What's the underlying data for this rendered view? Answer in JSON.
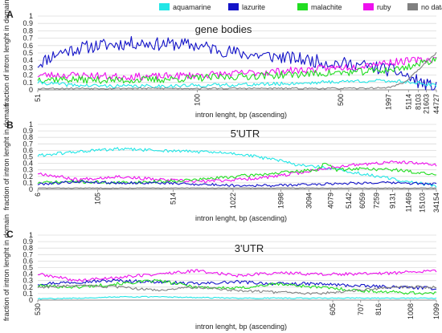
{
  "legend": [
    {
      "label": "aquamarine",
      "color": "#22e6e6"
    },
    {
      "label": "lazurite",
      "color": "#1414c8"
    },
    {
      "label": "malachite",
      "color": "#22dd22"
    },
    {
      "label": "ruby",
      "color": "#ee11ee"
    },
    {
      "label": "no data",
      "color": "#808080"
    }
  ],
  "chart_data": [
    {
      "type": "line",
      "panel_letter": "A",
      "title": "gene bodies",
      "ylabel": "fraction of intron lenght in domain",
      "xlabel": "intron lenght, bp (ascending)",
      "ylim": [
        0,
        1
      ],
      "yticks": [
        "0",
        "0.1",
        "0.2",
        "0.3",
        "0.4",
        "0.5",
        "0.6",
        "0.7",
        "0.8",
        "0.9",
        "1"
      ],
      "grid": true,
      "xticks": [
        {
          "label": "51",
          "pos": 0.0
        },
        {
          "label": "100",
          "pos": 0.4
        },
        {
          "label": "500",
          "pos": 0.76
        },
        {
          "label": "1997",
          "pos": 0.88
        },
        {
          "label": "5114",
          "pos": 0.93
        },
        {
          "label": "8103",
          "pos": 0.955
        },
        {
          "label": "21603",
          "pos": 0.975
        },
        {
          "label": "44727",
          "pos": 1.0
        }
      ],
      "series": [
        {
          "name": "lazurite",
          "x": [
            0,
            0.05,
            0.1,
            0.15,
            0.2,
            0.25,
            0.3,
            0.35,
            0.4,
            0.45,
            0.5,
            0.55,
            0.6,
            0.65,
            0.7,
            0.75,
            0.8,
            0.85,
            0.9,
            0.95,
            1.0
          ],
          "y": [
            0.35,
            0.5,
            0.56,
            0.6,
            0.62,
            0.64,
            0.62,
            0.62,
            0.6,
            0.55,
            0.5,
            0.47,
            0.45,
            0.42,
            0.39,
            0.36,
            0.34,
            0.3,
            0.25,
            0.12,
            0.02
          ],
          "noise": 0.09,
          "seed": 11
        },
        {
          "name": "ruby",
          "x": [
            0,
            0.1,
            0.2,
            0.3,
            0.4,
            0.5,
            0.6,
            0.7,
            0.8,
            0.85,
            0.9,
            0.95,
            1.0
          ],
          "y": [
            0.2,
            0.2,
            0.18,
            0.18,
            0.2,
            0.22,
            0.25,
            0.28,
            0.32,
            0.36,
            0.38,
            0.4,
            0.42
          ],
          "noise": 0.05,
          "seed": 23
        },
        {
          "name": "malachite",
          "x": [
            0,
            0.1,
            0.2,
            0.3,
            0.4,
            0.5,
            0.6,
            0.7,
            0.8,
            0.85,
            0.9,
            0.95,
            1.0
          ],
          "y": [
            0.15,
            0.14,
            0.13,
            0.14,
            0.16,
            0.18,
            0.2,
            0.22,
            0.24,
            0.26,
            0.28,
            0.34,
            0.42
          ],
          "noise": 0.05,
          "seed": 37
        },
        {
          "name": "aquamarine",
          "x": [
            0,
            0.1,
            0.2,
            0.3,
            0.4,
            0.5,
            0.6,
            0.7,
            0.8,
            0.85,
            0.9,
            0.95,
            1.0
          ],
          "y": [
            0.1,
            0.06,
            0.05,
            0.05,
            0.06,
            0.07,
            0.08,
            0.1,
            0.12,
            0.12,
            0.12,
            0.1,
            0.05
          ],
          "noise": 0.025,
          "seed": 41
        },
        {
          "name": "no data",
          "x": [
            0,
            0.1,
            0.2,
            0.3,
            0.4,
            0.5,
            0.6,
            0.7,
            0.8,
            0.88,
            0.92,
            0.96,
            1.0
          ],
          "y": [
            0.02,
            0.02,
            0.02,
            0.02,
            0.02,
            0.02,
            0.02,
            0.02,
            0.02,
            0.03,
            0.1,
            0.3,
            0.5
          ],
          "noise": 0.01,
          "seed": 53
        }
      ]
    },
    {
      "type": "line",
      "panel_letter": "B",
      "title": "5'UTR",
      "ylabel": "fraction of intron lenght in domain",
      "xlabel": "intron lenght, bp (ascending)",
      "ylim": [
        0,
        1
      ],
      "yticks": [
        "0",
        "0.1",
        "0.2",
        "0.3",
        "0.4",
        "0.5",
        "0.6",
        "0.7",
        "0.8",
        "0.9",
        "1"
      ],
      "grid": true,
      "xticks": [
        {
          "label": "6",
          "pos": 0.0
        },
        {
          "label": "105",
          "pos": 0.15
        },
        {
          "label": "514",
          "pos": 0.34
        },
        {
          "label": "1022",
          "pos": 0.49
        },
        {
          "label": "1998",
          "pos": 0.61
        },
        {
          "label": "3094",
          "pos": 0.68
        },
        {
          "label": "4079",
          "pos": 0.735
        },
        {
          "label": "5142",
          "pos": 0.78
        },
        {
          "label": "6059",
          "pos": 0.815
        },
        {
          "label": "7259",
          "pos": 0.85
        },
        {
          "label": "9131",
          "pos": 0.89
        },
        {
          "label": "11469",
          "pos": 0.93
        },
        {
          "label": "15103",
          "pos": 0.965
        },
        {
          "label": "34154",
          "pos": 1.0
        }
      ],
      "series": [
        {
          "name": "aquamarine",
          "x": [
            0,
            0.1,
            0.2,
            0.3,
            0.4,
            0.5,
            0.6,
            0.65,
            0.7,
            0.75,
            0.8,
            0.9,
            1.0
          ],
          "y": [
            0.52,
            0.58,
            0.62,
            0.6,
            0.58,
            0.55,
            0.45,
            0.38,
            0.35,
            0.3,
            0.25,
            0.15,
            0.05
          ],
          "noise": 0.025,
          "seed": 61
        },
        {
          "name": "ruby",
          "x": [
            0,
            0.1,
            0.2,
            0.3,
            0.4,
            0.5,
            0.6,
            0.7,
            0.75,
            0.8,
            0.9,
            1.0
          ],
          "y": [
            0.25,
            0.15,
            0.2,
            0.15,
            0.12,
            0.15,
            0.2,
            0.3,
            0.35,
            0.38,
            0.42,
            0.38
          ],
          "noise": 0.025,
          "seed": 67
        },
        {
          "name": "malachite",
          "x": [
            0,
            0.1,
            0.2,
            0.3,
            0.4,
            0.5,
            0.6,
            0.7,
            0.72,
            0.75,
            0.8,
            0.9,
            1.0
          ],
          "y": [
            0.1,
            0.12,
            0.1,
            0.12,
            0.15,
            0.2,
            0.25,
            0.3,
            0.4,
            0.3,
            0.32,
            0.3,
            0.22
          ],
          "noise": 0.025,
          "seed": 71
        },
        {
          "name": "lazurite",
          "x": [
            0,
            0.1,
            0.2,
            0.3,
            0.4,
            0.5,
            0.6,
            0.7,
            0.8,
            0.9,
            1.0
          ],
          "y": [
            0.08,
            0.12,
            0.1,
            0.1,
            0.08,
            0.06,
            0.06,
            0.08,
            0.1,
            0.1,
            0.08
          ],
          "noise": 0.02,
          "seed": 79
        },
        {
          "name": "no data",
          "x": [
            0,
            0.2,
            0.4,
            0.6,
            0.8,
            1.0
          ],
          "y": [
            0.02,
            0.02,
            0.02,
            0.02,
            0.02,
            0.02
          ],
          "noise": 0.005,
          "seed": 83
        }
      ]
    },
    {
      "type": "line",
      "panel_letter": "C",
      "title": "3'UTR",
      "ylabel": "fraction of intron lenght in domain",
      "xlabel": "intron lenght, bp (ascending)",
      "ylim": [
        0,
        1
      ],
      "yticks": [
        "0",
        "0.1",
        "0.2",
        "0.3",
        "0.4",
        "0.5",
        "0.6",
        "0.7",
        "0.8",
        "0.9",
        "1"
      ],
      "grid": true,
      "xticks": [
        {
          "label": "530",
          "pos": 0.0
        },
        {
          "label": "605",
          "pos": 0.74
        },
        {
          "label": "707",
          "pos": 0.81
        },
        {
          "label": "816",
          "pos": 0.855
        },
        {
          "label": "1008",
          "pos": 0.935
        },
        {
          "label": "1099",
          "pos": 1.0
        }
      ],
      "series": [
        {
          "name": "ruby",
          "x": [
            0,
            0.1,
            0.2,
            0.3,
            0.4,
            0.5,
            0.6,
            0.7,
            0.8,
            0.9,
            1.0
          ],
          "y": [
            0.4,
            0.3,
            0.35,
            0.4,
            0.45,
            0.38,
            0.42,
            0.4,
            0.4,
            0.42,
            0.45
          ],
          "noise": 0.025,
          "seed": 89
        },
        {
          "name": "lazurite",
          "x": [
            0,
            0.1,
            0.2,
            0.3,
            0.4,
            0.5,
            0.6,
            0.7,
            0.8,
            0.9,
            1.0
          ],
          "y": [
            0.25,
            0.28,
            0.3,
            0.28,
            0.25,
            0.28,
            0.25,
            0.25,
            0.22,
            0.2,
            0.18
          ],
          "noise": 0.025,
          "seed": 97
        },
        {
          "name": "malachite",
          "x": [
            0,
            0.1,
            0.2,
            0.3,
            0.4,
            0.5,
            0.6,
            0.7,
            0.8,
            0.9,
            1.0
          ],
          "y": [
            0.22,
            0.2,
            0.25,
            0.3,
            0.2,
            0.18,
            0.25,
            0.2,
            0.15,
            0.12,
            0.1
          ],
          "noise": 0.025,
          "seed": 101
        },
        {
          "name": "no data",
          "x": [
            0,
            0.1,
            0.2,
            0.3,
            0.4,
            0.5,
            0.6,
            0.7,
            0.8,
            0.9,
            1.0
          ],
          "y": [
            0.2,
            0.22,
            0.2,
            0.15,
            0.2,
            0.15,
            0.12,
            0.1,
            0.15,
            0.2,
            0.2
          ],
          "noise": 0.02,
          "seed": 103
        },
        {
          "name": "aquamarine",
          "x": [
            0,
            0.1,
            0.2,
            0.3,
            0.4,
            0.5,
            0.6,
            0.7,
            0.8,
            0.9,
            1.0
          ],
          "y": [
            0.02,
            0.03,
            0.05,
            0.05,
            0.04,
            0.03,
            0.03,
            0.03,
            0.03,
            0.03,
            0.03
          ],
          "noise": 0.008,
          "seed": 107
        }
      ]
    }
  ]
}
